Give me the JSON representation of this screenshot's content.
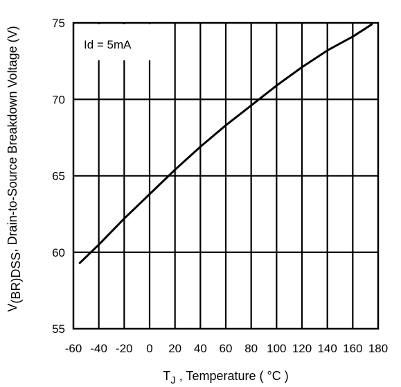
{
  "chart_data": {
    "type": "line",
    "xlabel": {
      "main": "T",
      "sub": "J",
      "rest": " , Temperature ( °C )"
    },
    "ylabel": {
      "main": "V",
      "sub": "(BR)DSS",
      "rest": ", Drain-to-Source Breakdown Voltage (V)"
    },
    "annotation": "Id = 5mA",
    "xlim": [
      -60,
      180
    ],
    "ylim": [
      55,
      75
    ],
    "xticks": [
      -60,
      -40,
      -20,
      0,
      20,
      40,
      60,
      80,
      100,
      120,
      140,
      160,
      180
    ],
    "xticklabels": [
      "-60",
      "-40",
      "-20",
      "0",
      "20",
      "40",
      "60",
      "80",
      "100",
      "120",
      "140",
      "160",
      "180"
    ],
    "yticks": [
      55,
      60,
      65,
      70,
      75
    ],
    "yticklabels": [
      "55",
      "60",
      "65",
      "70",
      "75"
    ],
    "grid": true,
    "series": [
      {
        "x": [
          -55,
          -40,
          -20,
          0,
          20,
          40,
          60,
          80,
          100,
          120,
          140,
          160,
          175
        ],
        "y": [
          59.3,
          60.5,
          62.2,
          63.8,
          65.4,
          66.9,
          68.3,
          69.6,
          70.9,
          72.1,
          73.2,
          74.1,
          74.9
        ]
      }
    ],
    "colors": {
      "line": "#000000",
      "grid": "#000000",
      "background": "#ffffff"
    }
  }
}
